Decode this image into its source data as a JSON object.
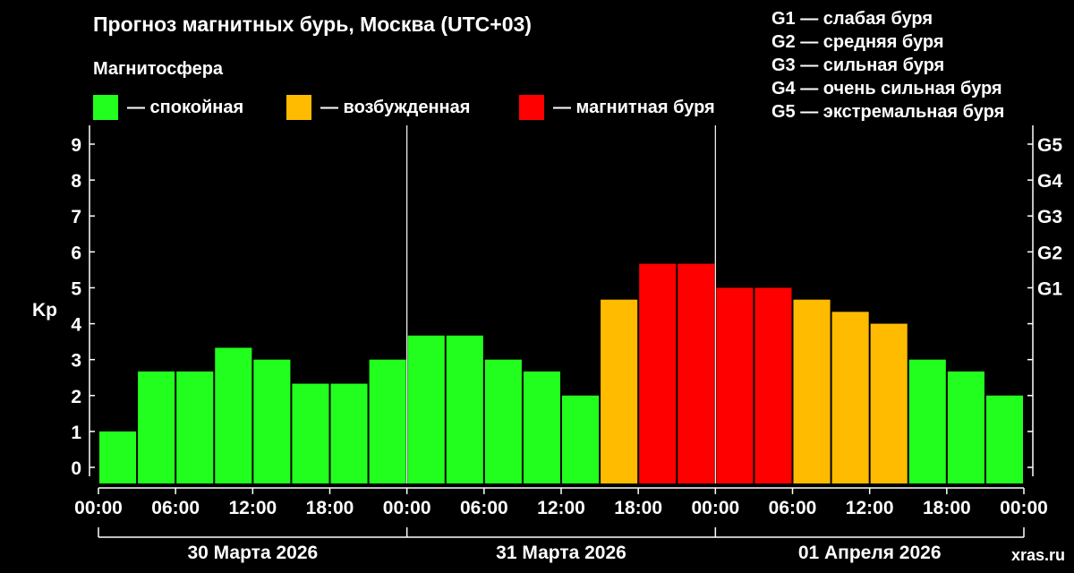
{
  "title": "Прогноз магнитных бурь, Москва (UTC+03)",
  "magnetosphere": {
    "title": "Магнитосфера",
    "legend": [
      {
        "label": "— спокойная",
        "color": "#22ff1e"
      },
      {
        "label": "— возбужденная",
        "color": "#ffbb00"
      },
      {
        "label": "— магнитная буря",
        "color": "#ff0000"
      }
    ]
  },
  "storm_levels": [
    "G1 — слабая буря",
    "G2 — средняя буря",
    "G3 — сильная буря",
    "G4 — очень сильная буря",
    "G5 — экстремальная буря"
  ],
  "watermark": "xras.ru",
  "chart_data": {
    "type": "bar",
    "ylabel": "Kp",
    "ylim": [
      0,
      9
    ],
    "yticks": [
      "0",
      "1",
      "2",
      "3",
      "4",
      "5",
      "6",
      "7",
      "8",
      "9"
    ],
    "right_ticks": [
      {
        "kp": 5,
        "label": "G1"
      },
      {
        "kp": 6,
        "label": "G2"
      },
      {
        "kp": 7,
        "label": "G3"
      },
      {
        "kp": 8,
        "label": "G4"
      },
      {
        "kp": 9,
        "label": "G5"
      }
    ],
    "time_ticks": [
      "00:00",
      "06:00",
      "12:00",
      "18:00",
      "00:00",
      "06:00",
      "12:00",
      "18:00",
      "00:00",
      "06:00",
      "12:00",
      "18:00",
      "00:00"
    ],
    "days": [
      "30 Марта 2026",
      "31 Марта 2026",
      "01 Апреля 2026"
    ],
    "bins_per_day": 8,
    "bin_hours": 3,
    "values": [
      1.0,
      2.67,
      2.67,
      3.33,
      3.0,
      2.33,
      2.33,
      3.0,
      3.67,
      3.67,
      3.0,
      2.67,
      2.0,
      4.67,
      5.67,
      5.67,
      5.0,
      5.0,
      4.67,
      4.33,
      4.0,
      3.0,
      2.67,
      2.0
    ],
    "thresholds": {
      "active_min": 4,
      "storm_min": 5
    },
    "colors": {
      "quiet": "#22ff1e",
      "active": "#ffbb00",
      "storm": "#ff0000"
    },
    "grid": false
  }
}
